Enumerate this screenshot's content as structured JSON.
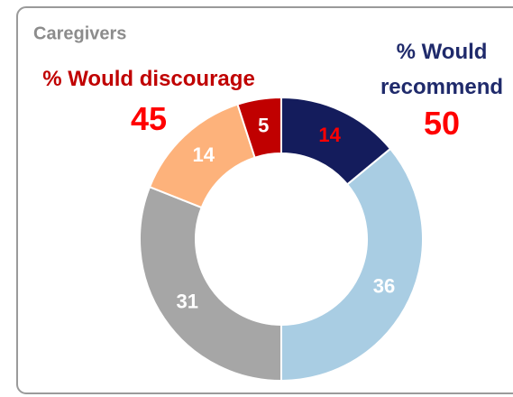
{
  "chart_data": {
    "type": "pie",
    "donut": true,
    "title": "Caregivers",
    "categories": [
      null,
      null,
      null,
      null,
      null
    ],
    "values": [
      14,
      36,
      31,
      14,
      5
    ],
    "colors": [
      "#141c5c",
      "#a9cde3",
      "#a6a6a6",
      "#fdb27b",
      "#c00000"
    ],
    "label_colors": [
      "#ff0000",
      "#ffffff",
      "#ffffff",
      "#ffffff",
      "#ffffff"
    ],
    "annotations": [
      {
        "text": "% Would discourage",
        "value": 45,
        "color": "#c00000"
      },
      {
        "text": "% Would recommend",
        "value": 50,
        "color": "#1f2a6b"
      }
    ]
  }
}
